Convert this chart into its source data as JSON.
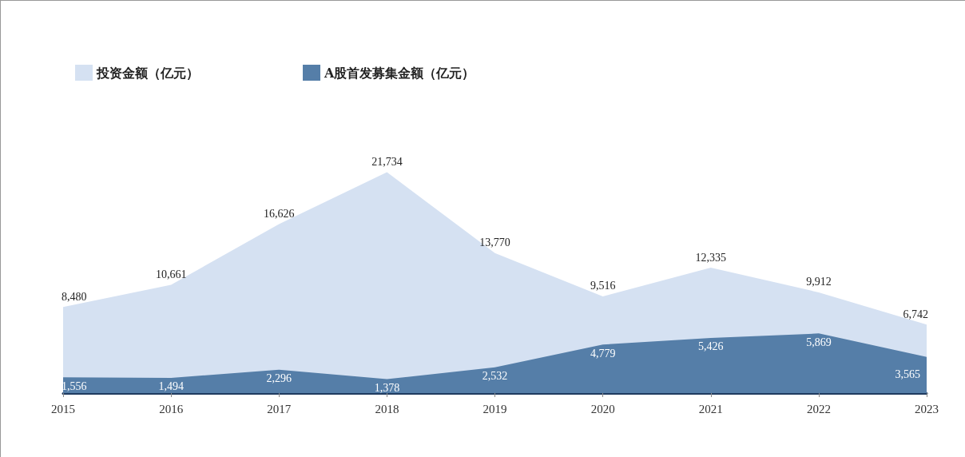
{
  "chart_data": {
    "type": "area",
    "categories": [
      "2015",
      "2016",
      "2017",
      "2018",
      "2019",
      "2020",
      "2021",
      "2022",
      "2023"
    ],
    "series": [
      {
        "name": "投资金额（亿元）",
        "color": "#d5e1f2",
        "values": [
          8480,
          10661,
          16626,
          21734,
          13770,
          9516,
          12335,
          9912,
          6742
        ],
        "value_labels": [
          "8,480",
          "10,661",
          "16,626",
          "21,734",
          "13,770",
          "9,516",
          "12,335",
          "9,912",
          "6,742"
        ]
      },
      {
        "name": "A股首发募集金额（亿元）",
        "color": "#557ea8",
        "values": [
          1556,
          1494,
          2296,
          1378,
          2532,
          4779,
          5426,
          5869,
          3565
        ],
        "value_labels": [
          "1,556",
          "1,494",
          "2,296",
          "1,378",
          "2,532",
          "4,779",
          "5,426",
          "5,869",
          "3,565"
        ]
      }
    ],
    "legend": "top left",
    "grid": false,
    "marker": "none"
  }
}
